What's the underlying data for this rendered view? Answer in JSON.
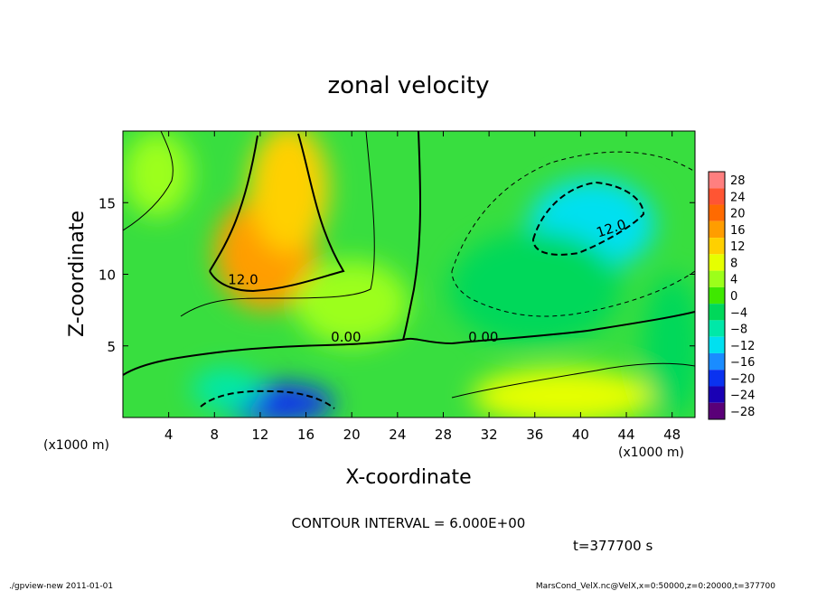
{
  "chart_data": {
    "type": "heatmap",
    "title": "zonal velocity",
    "xlabel": "X-coordinate",
    "ylabel": "Z-coordinate",
    "x_unit_label": "(x1000 m)",
    "x_unit_label_bottom": "(x1000 m)",
    "xlim": [
      0,
      50
    ],
    "ylim": [
      0,
      20
    ],
    "x_ticks": [
      4,
      8,
      12,
      16,
      20,
      24,
      28,
      32,
      36,
      40,
      44,
      48
    ],
    "y_ticks": [
      5,
      10,
      15
    ],
    "colorbar": {
      "levels": [
        28,
        24,
        20,
        16,
        12,
        8,
        4,
        0,
        -4,
        -8,
        -12,
        -16,
        -20,
        -24,
        -28
      ],
      "labels": [
        "28",
        "24",
        "20",
        "16",
        "12",
        "8",
        "4",
        "0",
        "−4",
        "−8",
        "−12",
        "−16",
        "−20",
        "−24",
        "−28"
      ],
      "colors": [
        "#ff7f7f",
        "#ff5533",
        "#ff6a00",
        "#ff9d00",
        "#ffd000",
        "#e6ff00",
        "#9cff1a",
        "#3fe800",
        "#00d85a",
        "#00e8a8",
        "#00e0f0",
        "#1a8cff",
        "#0a32f0",
        "#1a00b4",
        "#5a0078"
      ]
    },
    "field_blobs": [
      {
        "x": 12.5,
        "z": 11.5,
        "rx": 4.5,
        "rz": 4.0,
        "value": 16
      },
      {
        "x": 14.5,
        "z": 16.0,
        "rx": 3.5,
        "rz": 4.5,
        "value": 11
      },
      {
        "x": 41.0,
        "z": 13.5,
        "rx": 5.5,
        "rz": 3.2,
        "value": -14
      },
      {
        "x": 36.0,
        "z": 9.0,
        "rx": 7.5,
        "rz": 4.0,
        "value": -6
      },
      {
        "x": 13.5,
        "z": 1.0,
        "rx": 5.0,
        "rz": 1.4,
        "value": -20
      },
      {
        "x": 9.0,
        "z": 2.0,
        "rx": 3.0,
        "rz": 1.5,
        "value": -9
      },
      {
        "x": 38.5,
        "z": 1.5,
        "rx": 8.0,
        "rz": 2.0,
        "value": 9
      },
      {
        "x": 3.0,
        "z": 17.0,
        "rx": 3.0,
        "rz": 3.0,
        "value": 5
      },
      {
        "x": 20.0,
        "z": 8.0,
        "rx": 5.0,
        "rz": 3.0,
        "value": 4
      },
      {
        "x": 48.0,
        "z": 5.0,
        "rx": 2.5,
        "rz": 5.0,
        "value": -3
      }
    ],
    "contour_labels": [
      {
        "text": "12.0",
        "x": 10.5,
        "z": 9.3,
        "angle": 0
      },
      {
        "text": "12.0",
        "x": 42.8,
        "z": 12.9,
        "angle": -18
      },
      {
        "text": "0.00",
        "x": 19.5,
        "z": 5.3,
        "angle": 0
      },
      {
        "text": "0.00",
        "x": 31.5,
        "z": 5.3,
        "angle": 0
      }
    ],
    "grid": false,
    "legend": "right"
  },
  "annotations": {
    "contour_interval": "CONTOUR INTERVAL = 6.000E+00",
    "time": "t=377700  s",
    "footer_left": "./gpview-new   2011-01-01",
    "footer_right": "MarsCond_VelX.nc@VelX,x=0:50000,z=0:20000,t=377700"
  }
}
